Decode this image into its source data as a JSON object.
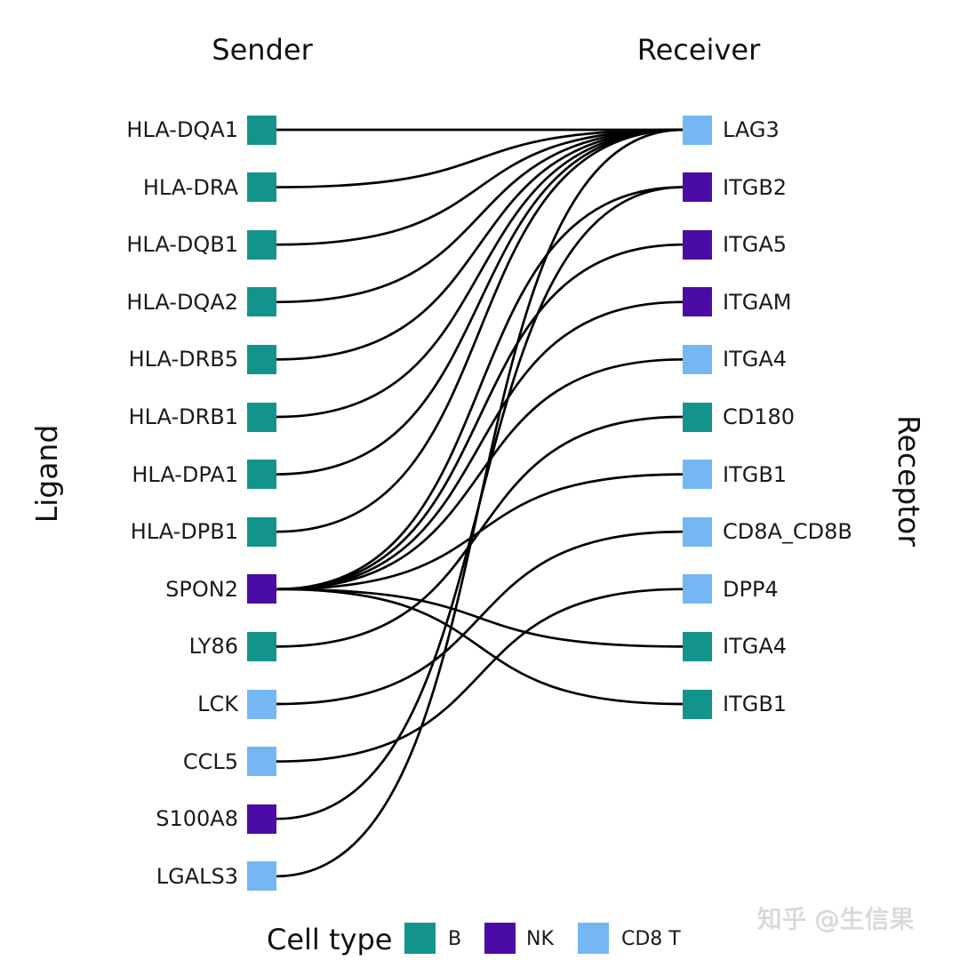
{
  "titles": {
    "sender": "Sender",
    "receiver": "Receiver"
  },
  "axis_labels": {
    "left": "Ligand",
    "right": "Receptor"
  },
  "cell_type_colors": {
    "B": "#12948C",
    "NK": "#4B0CA6",
    "CD8 T": "#75B7F2"
  },
  "link_color": "#000000",
  "chart_data": {
    "type": "bipartite-link-plot",
    "left_column_title": "Sender",
    "right_column_title": "Receiver",
    "left_axis_label": "Ligand",
    "right_axis_label": "Receptor",
    "legend_position": "bottom",
    "ligands": [
      {
        "name": "HLA-DQA1",
        "cell_type": "B"
      },
      {
        "name": "HLA-DRA",
        "cell_type": "B"
      },
      {
        "name": "HLA-DQB1",
        "cell_type": "B"
      },
      {
        "name": "HLA-DQA2",
        "cell_type": "B"
      },
      {
        "name": "HLA-DRB5",
        "cell_type": "B"
      },
      {
        "name": "HLA-DRB1",
        "cell_type": "B"
      },
      {
        "name": "HLA-DPA1",
        "cell_type": "B"
      },
      {
        "name": "HLA-DPB1",
        "cell_type": "B"
      },
      {
        "name": "SPON2",
        "cell_type": "NK"
      },
      {
        "name": "LY86",
        "cell_type": "B"
      },
      {
        "name": "LCK",
        "cell_type": "CD8 T"
      },
      {
        "name": "CCL5",
        "cell_type": "CD8 T"
      },
      {
        "name": "S100A8",
        "cell_type": "NK"
      },
      {
        "name": "LGALS3",
        "cell_type": "CD8 T"
      }
    ],
    "receptors": [
      {
        "name": "LAG3",
        "cell_type": "CD8 T"
      },
      {
        "name": "ITGB2",
        "cell_type": "NK"
      },
      {
        "name": "ITGA5",
        "cell_type": "NK"
      },
      {
        "name": "ITGAM",
        "cell_type": "NK"
      },
      {
        "name": "ITGA4",
        "cell_type": "CD8 T"
      },
      {
        "name": "CD180",
        "cell_type": "B"
      },
      {
        "name": "ITGB1",
        "cell_type": "CD8 T"
      },
      {
        "name": "CD8A_CD8B",
        "cell_type": "CD8 T"
      },
      {
        "name": "DPP4",
        "cell_type": "CD8 T"
      },
      {
        "name": "ITGA4",
        "cell_type": "B"
      },
      {
        "name": "ITGB1",
        "cell_type": "B"
      }
    ],
    "links": [
      {
        "ligand": "HLA-DQA1",
        "li": 0,
        "receptor": "LAG3",
        "ri": 0
      },
      {
        "ligand": "HLA-DRA",
        "li": 1,
        "receptor": "LAG3",
        "ri": 0
      },
      {
        "ligand": "HLA-DQB1",
        "li": 2,
        "receptor": "LAG3",
        "ri": 0
      },
      {
        "ligand": "HLA-DQA2",
        "li": 3,
        "receptor": "LAG3",
        "ri": 0
      },
      {
        "ligand": "HLA-DRB5",
        "li": 4,
        "receptor": "LAG3",
        "ri": 0
      },
      {
        "ligand": "HLA-DRB1",
        "li": 5,
        "receptor": "LAG3",
        "ri": 0
      },
      {
        "ligand": "HLA-DPA1",
        "li": 6,
        "receptor": "LAG3",
        "ri": 0
      },
      {
        "ligand": "HLA-DPB1",
        "li": 7,
        "receptor": "LAG3",
        "ri": 0
      },
      {
        "ligand": "SPON2",
        "li": 8,
        "receptor": "ITGB2",
        "ri": 1
      },
      {
        "ligand": "SPON2",
        "li": 8,
        "receptor": "ITGA5",
        "ri": 2
      },
      {
        "ligand": "SPON2",
        "li": 8,
        "receptor": "ITGAM",
        "ri": 3
      },
      {
        "ligand": "SPON2",
        "li": 8,
        "receptor": "ITGA4",
        "ri": 4
      },
      {
        "ligand": "SPON2",
        "li": 8,
        "receptor": "ITGB1",
        "ri": 6
      },
      {
        "ligand": "SPON2",
        "li": 8,
        "receptor": "ITGA4",
        "ri": 9
      },
      {
        "ligand": "SPON2",
        "li": 8,
        "receptor": "ITGB1",
        "ri": 10
      },
      {
        "ligand": "LY86",
        "li": 9,
        "receptor": "CD180",
        "ri": 5
      },
      {
        "ligand": "LCK",
        "li": 10,
        "receptor": "CD8A_CD8B",
        "ri": 7
      },
      {
        "ligand": "CCL5",
        "li": 11,
        "receptor": "DPP4",
        "ri": 8
      },
      {
        "ligand": "S100A8",
        "li": 12,
        "receptor": "ITGB2",
        "ri": 1
      },
      {
        "ligand": "LGALS3",
        "li": 13,
        "receptor": "LAG3",
        "ri": 0
      }
    ]
  },
  "legend": {
    "title": "Cell type",
    "items": [
      {
        "label": "B",
        "color": "#12948C"
      },
      {
        "label": "NK",
        "color": "#4B0CA6"
      },
      {
        "label": "CD8 T",
        "color": "#75B7F2"
      }
    ]
  },
  "watermark": "知乎 @生信果"
}
